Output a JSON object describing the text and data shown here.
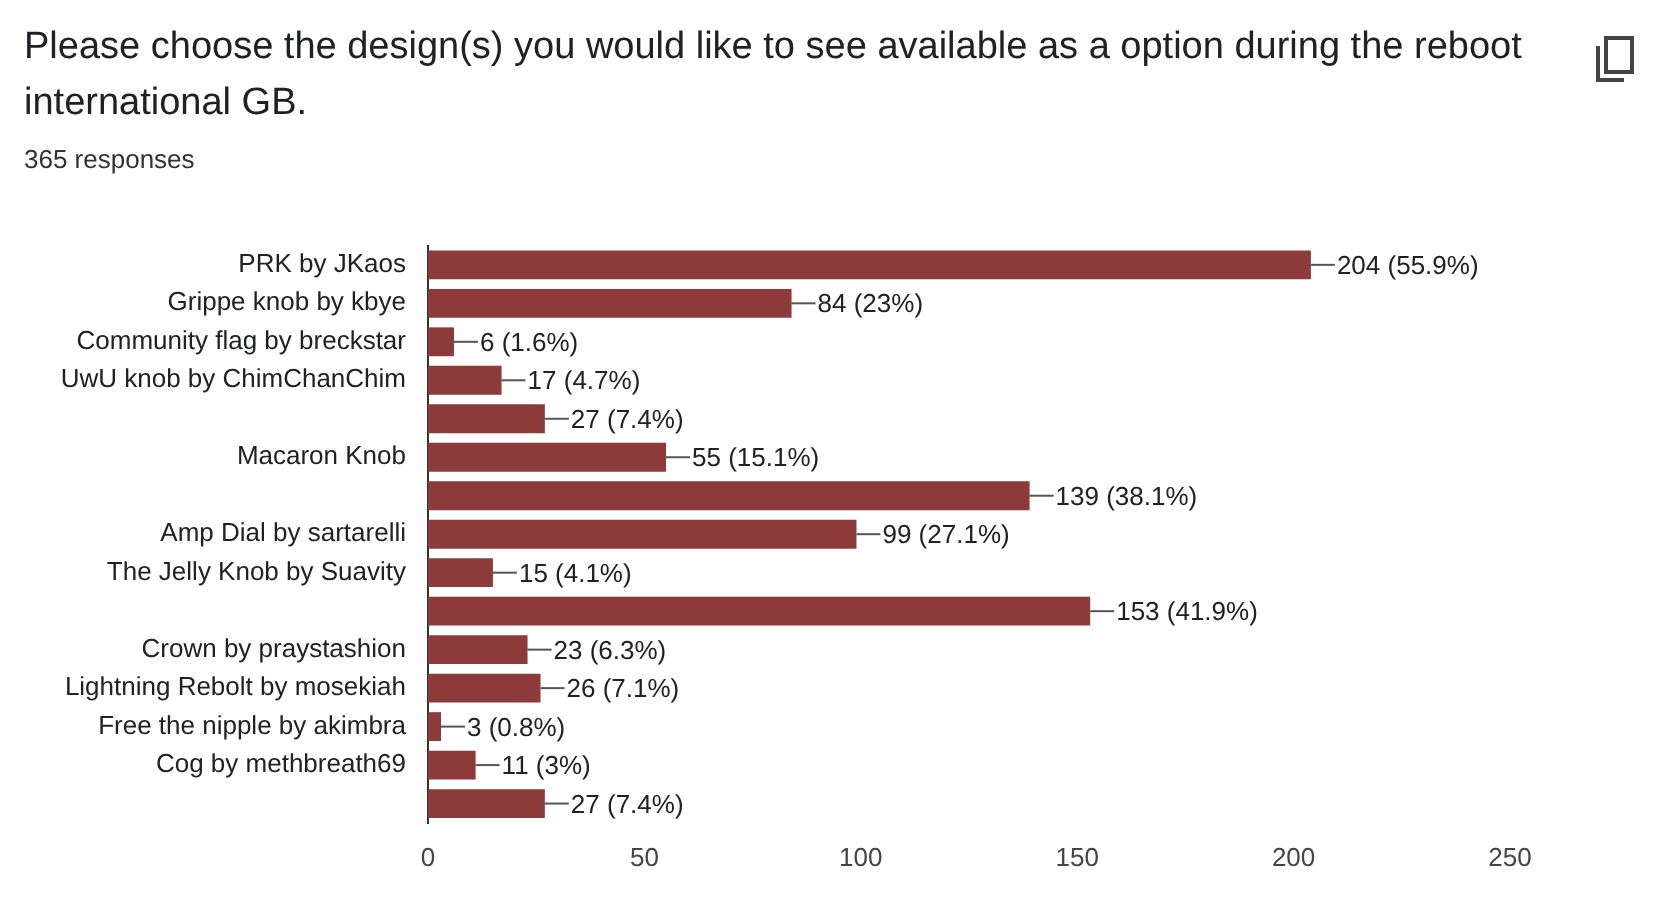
{
  "chart_data": {
    "type": "bar",
    "orientation": "horizontal",
    "title": "Please choose the design(s) you would like to see available as a option during the reboot international GB.",
    "subtitle": "365 responses",
    "categories": [
      "PRK by JKaos",
      "Grippe knob by kbye",
      "Community flag by breckstar",
      "UwU knob by ChimChanChim",
      null,
      "Macaron Knob",
      null,
      "Amp Dial by sartarelli",
      "The Jelly Knob by Suavity",
      null,
      "Crown by praystashion",
      "Lightning Rebolt by mosekiah",
      "Free the nipple by akimbra",
      "Cog by methbreath69",
      null
    ],
    "values": [
      204,
      84,
      6,
      17,
      27,
      55,
      139,
      99,
      15,
      153,
      23,
      26,
      3,
      11,
      27
    ],
    "value_labels": [
      "204 (55.9%)",
      "84 (23%)",
      "6 (1.6%)",
      "17 (4.7%)",
      "27 (7.4%)",
      "55 (15.1%)",
      "139 (38.1%)",
      "99 (27.1%)",
      "15 (4.1%)",
      "153 (41.9%)",
      "23 (6.3%)",
      "26 (7.1%)",
      "3 (0.8%)",
      "11 (3%)",
      "27 (7.4%)"
    ],
    "color": "#8c3a3a",
    "xlim": [
      0,
      250
    ],
    "xticks": [
      0,
      50,
      100,
      150,
      200,
      250
    ],
    "grid": false,
    "legend": false
  }
}
